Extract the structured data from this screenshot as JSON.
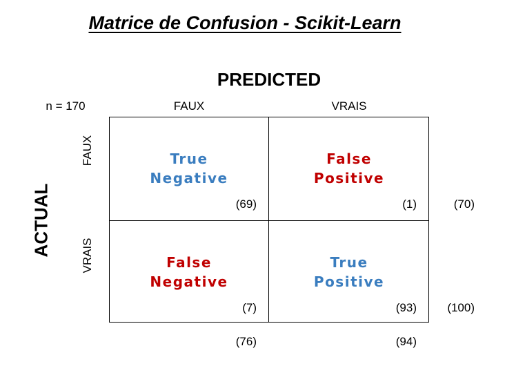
{
  "title": "Matrice de Confusion - Scikit-Learn",
  "axis_predicted": "PREDICTED",
  "axis_actual": "ACTUAL",
  "sample_size": "n = 170",
  "predicted_labels": [
    "FAUX",
    "VRAIS"
  ],
  "actual_labels": [
    "FAUX",
    "VRAIS"
  ],
  "cells": {
    "tn": {
      "line1": "True",
      "line2": "Negative",
      "count": "(69)"
    },
    "fp": {
      "line1": "False",
      "line2": "Positive",
      "count": "(1)"
    },
    "fn": {
      "line1": "False",
      "line2": "Negative",
      "count": "(7)"
    },
    "tp": {
      "line1": "True",
      "line2": "Positive",
      "count": "(93)"
    }
  },
  "row_totals": [
    "(70)",
    "(100)"
  ],
  "col_totals": [
    "(76)",
    "(94)"
  ],
  "colors": {
    "true_cells": "#3a7dbf",
    "false_cells": "#c00000"
  },
  "chart_data": {
    "type": "table",
    "rows": [
      "FAUX",
      "VRAIS"
    ],
    "columns": [
      "FAUX",
      "VRAIS"
    ],
    "values": [
      [
        69,
        1
      ],
      [
        7,
        93
      ]
    ],
    "row_totals": [
      70,
      100
    ],
    "column_totals": [
      76,
      94
    ],
    "n": 170
  }
}
